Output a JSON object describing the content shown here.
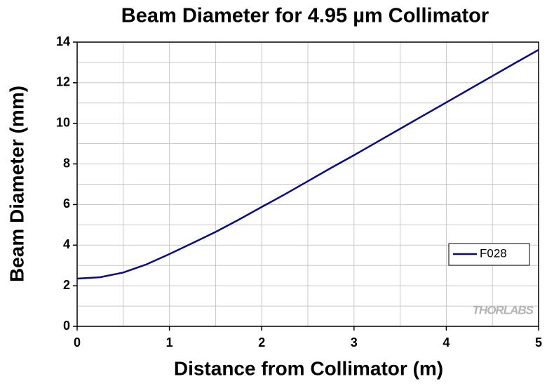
{
  "chart_data": {
    "type": "line",
    "title": "Beam Diameter for 4.95 µm Collimator",
    "xlabel": "Distance from Collimator (m)",
    "ylabel": "Beam Diameter (mm)",
    "watermark": "THORLABS",
    "x": [
      0,
      0.25,
      0.5,
      0.75,
      1,
      1.25,
      1.5,
      1.75,
      2,
      2.25,
      2.5,
      2.75,
      3,
      3.25,
      3.5,
      3.75,
      4,
      4.25,
      4.5,
      4.75,
      5
    ],
    "series": [
      {
        "name": "F028",
        "color": "#0a0a80",
        "values": [
          2.35,
          2.42,
          2.65,
          3.05,
          3.56,
          4.1,
          4.65,
          5.25,
          5.88,
          6.5,
          7.15,
          7.8,
          8.43,
          9.08,
          9.73,
          10.38,
          11.03,
          11.68,
          12.33,
          12.98,
          13.62
        ]
      }
    ],
    "xlim": [
      0,
      5
    ],
    "xticks": [
      0,
      1,
      2,
      3,
      4,
      5
    ],
    "ylim": [
      0,
      14
    ],
    "yticks": [
      0,
      2,
      4,
      6,
      8,
      10,
      12,
      14
    ],
    "grid": true,
    "legend": "right"
  }
}
